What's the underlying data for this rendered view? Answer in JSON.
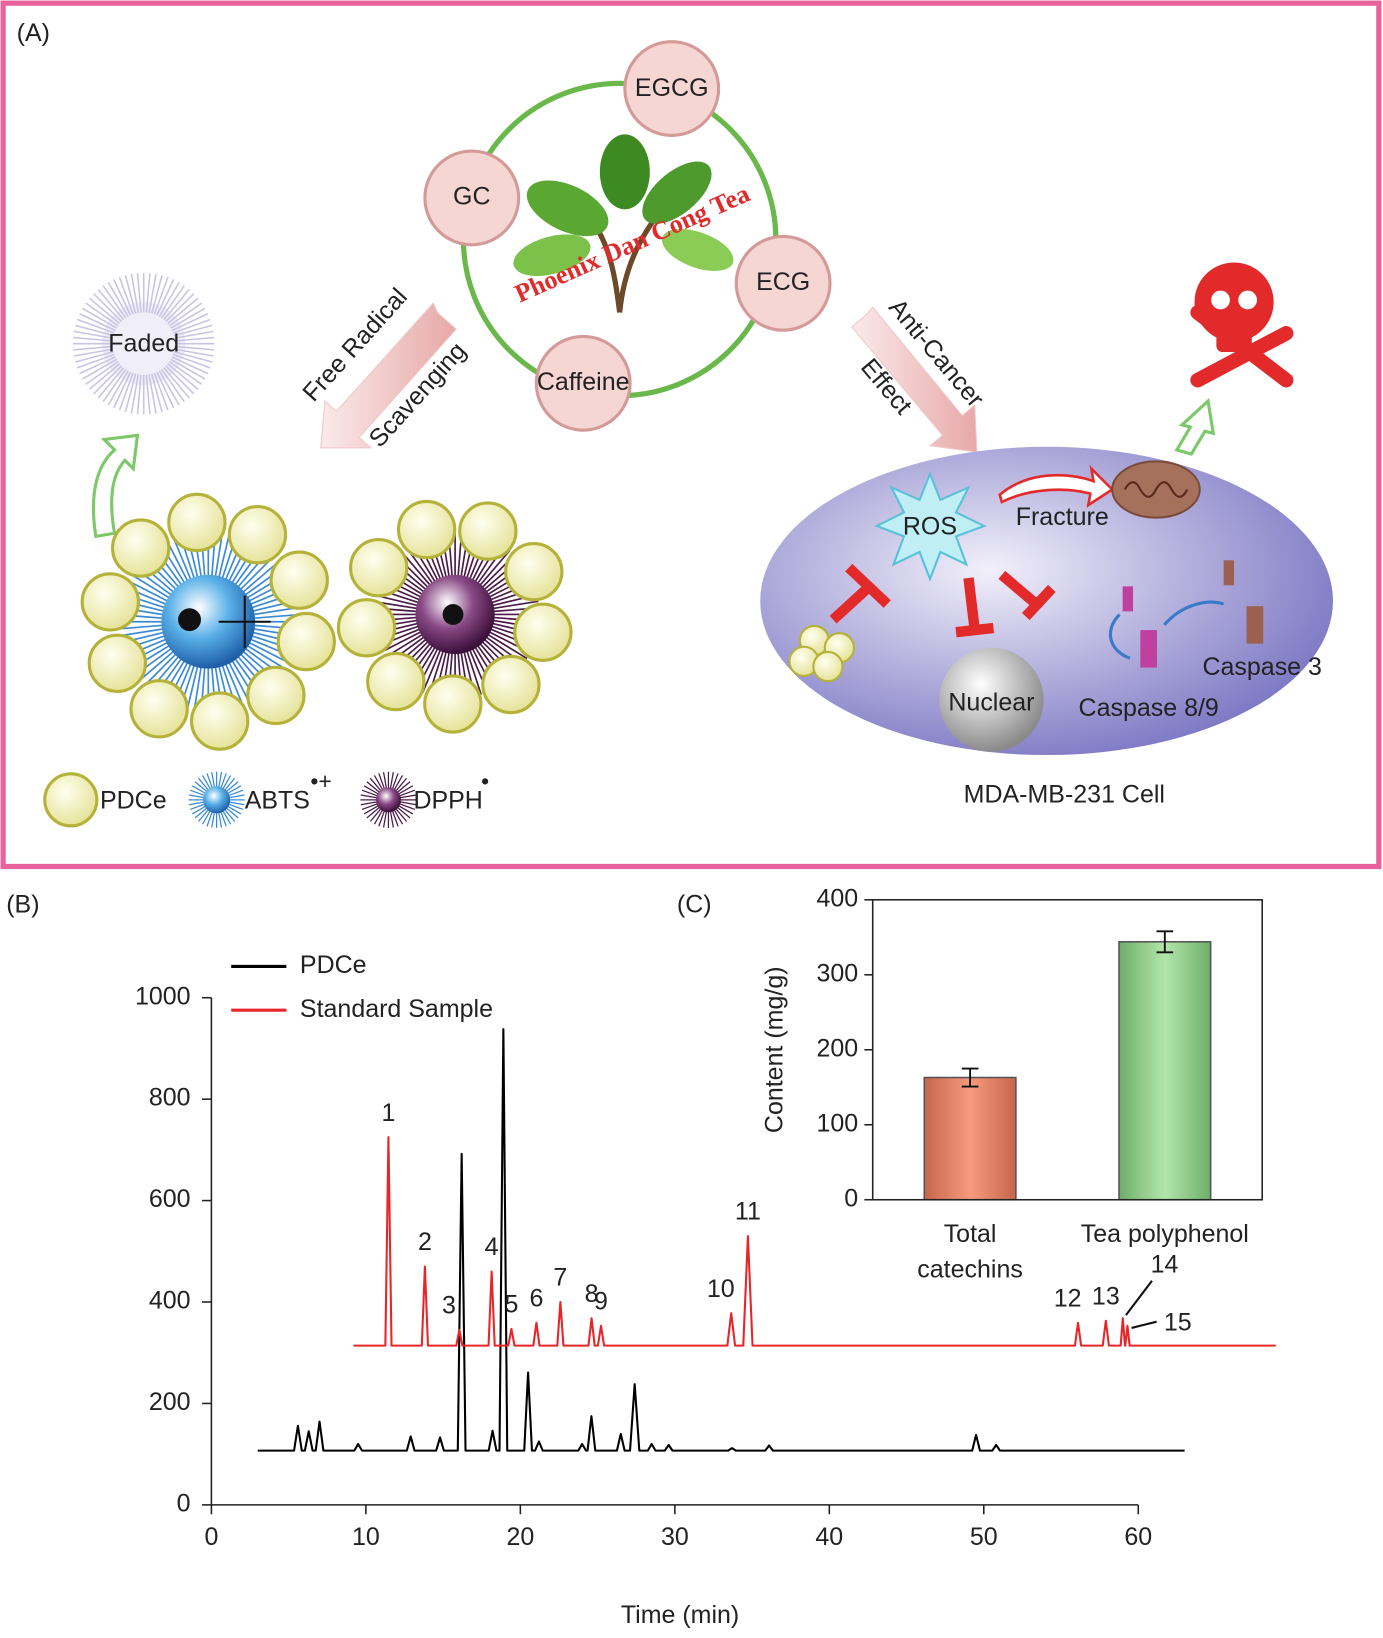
{
  "panel_labels": [
    "(A)",
    "(B)",
    "(C)"
  ],
  "diagram": {
    "title": "Phoenix Dan Cong Tea",
    "compounds": [
      "EGCG",
      "GC",
      "ECG",
      "Caffeine"
    ],
    "left_arrow": [
      "Free Radical",
      "Scavenging"
    ],
    "right_arrow": [
      "Anti-Cancer",
      "Effect"
    ],
    "faded": "Faded",
    "cell": {
      "ros": "ROS",
      "fracture": "Fracture",
      "nuclear": "Nuclear",
      "caspase89": "Caspase 8/9",
      "caspase3": "Caspase 3",
      "name": "MDA-MB-231 Cell"
    },
    "legend": [
      {
        "label": "PDCe"
      },
      {
        "label": "ABTS",
        "sup": "•+"
      },
      {
        "label": "DPPH",
        "sup": "•"
      }
    ]
  },
  "chart_data": [
    {
      "type": "line",
      "xlabel": "Time (min)",
      "xlim": [
        0,
        60
      ],
      "ylim": [
        0,
        1000
      ],
      "xticks": [
        0,
        10,
        20,
        30,
        40,
        50,
        60
      ],
      "yticks": [
        0,
        200,
        400,
        600,
        800,
        1000
      ],
      "legend": "upper left",
      "series": [
        {
          "name": "PDCe",
          "color": "#000000",
          "x": [
            3.0,
            5.35,
            5.6,
            5.85,
            6.05,
            6.3,
            6.55,
            6.75,
            7.0,
            7.25,
            9.25,
            9.5,
            9.75,
            12.65,
            12.9,
            13.15,
            14.55,
            14.8,
            15.05,
            15.95,
            16.2,
            16.45,
            17.95,
            18.2,
            18.45,
            18.65,
            18.9,
            19.15,
            20.25,
            20.5,
            20.75,
            20.95,
            21.2,
            21.45,
            23.75,
            24.0,
            24.25,
            24.35,
            24.6,
            24.85,
            26.25,
            26.5,
            26.75,
            27.1,
            27.4,
            27.7,
            28.25,
            28.5,
            28.75,
            29.35,
            29.6,
            29.85,
            33.45,
            33.7,
            33.95,
            35.85,
            36.1,
            36.35,
            49.25,
            49.5,
            49.75,
            50.55,
            50.8,
            51.05,
            63.0
          ],
          "values": [
            107,
            107,
            156,
            107,
            107,
            145,
            107,
            107,
            164,
            107,
            107,
            120,
            107,
            107,
            135,
            107,
            107,
            133,
            107,
            107,
            692,
            107,
            107,
            146,
            107,
            107,
            938,
            107,
            107,
            261,
            107,
            107,
            125,
            107,
            107,
            120,
            107,
            107,
            175,
            107,
            107,
            140,
            107,
            107,
            238,
            107,
            107,
            120,
            107,
            107,
            118,
            107,
            107,
            112,
            107,
            107,
            117,
            107,
            107,
            138,
            107,
            107,
            118,
            107,
            107
          ]
        },
        {
          "name": "Standard Sample",
          "color": "#e8262a",
          "x": [
            9.2,
            11.26,
            11.46,
            11.66,
            13.62,
            13.82,
            14.02,
            15.85,
            16.05,
            16.25,
            17.94,
            18.14,
            18.34,
            19.22,
            19.42,
            19.62,
            20.84,
            21.04,
            21.24,
            22.39,
            22.59,
            22.79,
            24.41,
            24.61,
            24.81,
            25.02,
            25.22,
            25.42,
            33.4,
            33.65,
            33.9,
            34.43,
            34.73,
            35.03,
            55.9,
            56.1,
            56.3,
            57.7,
            57.9,
            58.1,
            58.86,
            59.0,
            59.14,
            59.16,
            59.3,
            59.44,
            68.9
          ],
          "values": [
            314,
            314,
            725,
            314,
            314,
            470,
            314,
            314,
            345,
            314,
            314,
            460,
            314,
            314,
            347,
            314,
            314,
            359,
            314,
            314,
            400,
            314,
            314,
            368,
            314,
            314,
            353,
            314,
            314,
            378,
            314,
            314,
            530,
            314,
            314,
            359,
            314,
            314,
            363,
            314,
            314,
            368,
            314,
            314,
            353,
            314,
            314
          ],
          "peak_labels": [
            "1",
            "2",
            "3",
            "4",
            "5",
            "6",
            "7",
            "8",
            "9",
            "10",
            "11",
            "12",
            "13",
            "14",
            "15"
          ]
        }
      ]
    },
    {
      "type": "bar",
      "ylabel": "Content (mg/g)",
      "categories": [
        "Total\ncatechins",
        "Tea polyphenol"
      ],
      "values": [
        163,
        344
      ],
      "errors": [
        12,
        14
      ],
      "colors": [
        "#f08a6e",
        "#94d490"
      ],
      "ylim": [
        0,
        400
      ],
      "yticks": [
        0,
        100,
        200,
        300,
        400
      ]
    }
  ]
}
